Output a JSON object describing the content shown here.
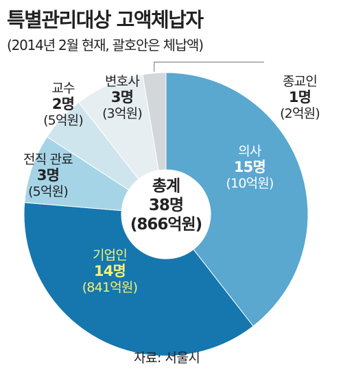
{
  "title": "특별관리대상 고액체납자",
  "subtitle": "(2014년 2월 현재, 괄호안은 체납액)",
  "source": "자료: 서울시",
  "colors": {
    "doctor": "#5aa7cf",
    "business": "#1577ad",
    "official": "#a6d4e7",
    "professor": "#cfe5ee",
    "lawyer": "#e7eef2",
    "clergy": "#d3d7d9",
    "highlight_text": "#f4f07a",
    "white_text": "#ffffff",
    "dark_text": "#222222"
  },
  "center": {
    "label": "총계",
    "count": "38명",
    "amount": "(866억원)"
  },
  "chart_data": {
    "type": "pie",
    "donut": true,
    "title": "특별관리대상 고액체납자",
    "unit_count": "명",
    "unit_amount": "억원",
    "total_count": 38,
    "total_amount": 866,
    "slices": [
      {
        "key": "doctor",
        "name": "의사",
        "count": 15,
        "amount": 10,
        "count_label": "15명",
        "amount_label": "(10억원)"
      },
      {
        "key": "business",
        "name": "기업인",
        "count": 14,
        "amount": 841,
        "count_label": "14명",
        "amount_label": "(841억원)"
      },
      {
        "key": "official",
        "name": "전직 관료",
        "count": 3,
        "amount": 5,
        "count_label": "3명",
        "amount_label": "(5억원)"
      },
      {
        "key": "professor",
        "name": "교수",
        "count": 2,
        "amount": 5,
        "count_label": "2명",
        "amount_label": "(5억원)"
      },
      {
        "key": "lawyer",
        "name": "변호사",
        "count": 3,
        "amount": 3,
        "count_label": "3명",
        "amount_label": "(3억원)"
      },
      {
        "key": "clergy",
        "name": "종교인",
        "count": 1,
        "amount": 2,
        "count_label": "1명",
        "amount_label": "(2억원)"
      }
    ]
  }
}
